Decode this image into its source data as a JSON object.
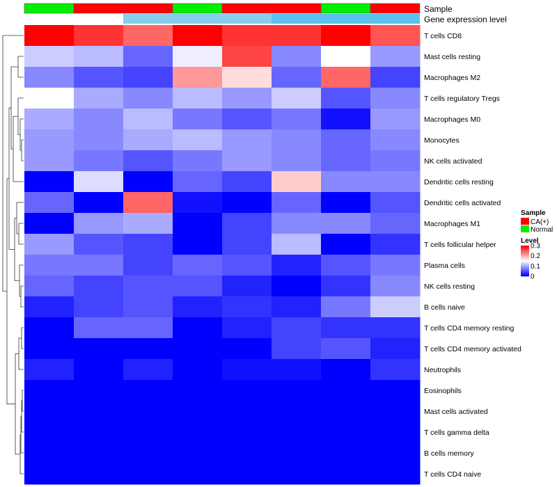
{
  "chart_data": {
    "type": "heatmap",
    "annotation_tracks": [
      {
        "label": "Sample",
        "values": [
          "Normal",
          "CA(+)",
          "CA(+)",
          "Normal",
          "CA(+)",
          "CA(+)",
          "Normal",
          "CA(+)"
        ]
      },
      {
        "label": "Gene expression level",
        "values": [
          "white",
          "white",
          "light-blue",
          "light-blue",
          "light-blue",
          "blue",
          "blue",
          "blue"
        ]
      }
    ],
    "rows": [
      "T cells CD8",
      "Mast cells resting",
      "Macrophages M2",
      "T cells regulatory  Tregs",
      "Macrophages M0",
      "Monocytes",
      "NK cells activated",
      "Dendritic cells resting",
      "Dendritic cells activated",
      "Macrophages M1",
      "T cells follicular helper",
      "Plasma cells",
      "NK cells resting",
      "B cells naive",
      "T cells CD4 memory resting",
      "T cells CD4 memory activated",
      "Neutrophils",
      "Eosinophils",
      "Mast cells activated",
      "T cells gamma delta",
      "B cells memory",
      "T cells CD4 naive"
    ],
    "values": [
      [
        0.3,
        0.27,
        0.24,
        0.3,
        0.27,
        0.27,
        0.3,
        0.25
      ],
      [
        0.12,
        0.11,
        0.06,
        0.14,
        0.26,
        0.08,
        0.15,
        0.09
      ],
      [
        0.08,
        0.05,
        0.04,
        0.21,
        0.17,
        0.06,
        0.24,
        0.04
      ],
      [
        0.15,
        0.1,
        0.08,
        0.11,
        0.09,
        0.12,
        0.05,
        0.08
      ],
      [
        0.1,
        0.08,
        0.11,
        0.07,
        0.05,
        0.07,
        0.01,
        0.09
      ],
      [
        0.09,
        0.08,
        0.1,
        0.11,
        0.09,
        0.08,
        0.06,
        0.08
      ],
      [
        0.09,
        0.07,
        0.05,
        0.07,
        0.09,
        0.08,
        0.06,
        0.07
      ],
      [
        0.0,
        0.13,
        0.0,
        0.06,
        0.04,
        0.18,
        0.08,
        0.08
      ],
      [
        0.06,
        0.0,
        0.24,
        0.01,
        0.0,
        0.06,
        0.0,
        0.05
      ],
      [
        0.0,
        0.09,
        0.1,
        0.0,
        0.04,
        0.08,
        0.08,
        0.06
      ],
      [
        0.09,
        0.05,
        0.04,
        0.0,
        0.04,
        0.11,
        0.0,
        0.03
      ],
      [
        0.07,
        0.07,
        0.04,
        0.06,
        0.05,
        0.02,
        0.05,
        0.07
      ],
      [
        0.06,
        0.04,
        0.05,
        0.05,
        0.02,
        0.0,
        0.03,
        0.08
      ],
      [
        0.02,
        0.04,
        0.05,
        0.02,
        0.03,
        0.02,
        0.07,
        0.12
      ],
      [
        0.0,
        0.06,
        0.06,
        0.0,
        0.02,
        0.04,
        0.03,
        0.03
      ],
      [
        0.0,
        0.0,
        0.0,
        0.0,
        0.0,
        0.04,
        0.05,
        0.02
      ],
      [
        0.02,
        0.0,
        0.02,
        0.0,
        0.01,
        0.01,
        0.0,
        0.03
      ],
      [
        0.0,
        0.0,
        0.0,
        0.0,
        0.0,
        0.0,
        0.0,
        0.0
      ],
      [
        0.0,
        0.0,
        0.0,
        0.0,
        0.0,
        0.0,
        0.0,
        0.0
      ],
      [
        0.0,
        0.0,
        0.0,
        0.0,
        0.0,
        0.0,
        0.0,
        0.0
      ],
      [
        0.0,
        0.0,
        0.0,
        0.0,
        0.0,
        0.0,
        0.0,
        0.0
      ],
      [
        0.0,
        0.0,
        0.0,
        0.0,
        0.0,
        0.0,
        0.0,
        0.0
      ]
    ],
    "color_scale": {
      "min": 0,
      "max": 0.3,
      "low": "#0000ff",
      "mid": "#ffffff",
      "high": "#ff0000",
      "mid_value": 0.15
    },
    "legend": {
      "sample": {
        "title": "Sample",
        "entries": [
          {
            "label": "CA(+)",
            "color": "#ff0000"
          },
          {
            "label": "Normal",
            "color": "#00ee00"
          }
        ]
      },
      "level": {
        "title": "Level",
        "ticks": [
          "0.3",
          "0.2",
          "0.1",
          "0"
        ],
        "tick_values": [
          0.3,
          0.2,
          0.1,
          0
        ]
      }
    },
    "gene_level_colors": {
      "white": "#ffffff",
      "light-blue": "#87ceeb",
      "blue": "#5bc0eb"
    },
    "row_dendrogram": true
  }
}
